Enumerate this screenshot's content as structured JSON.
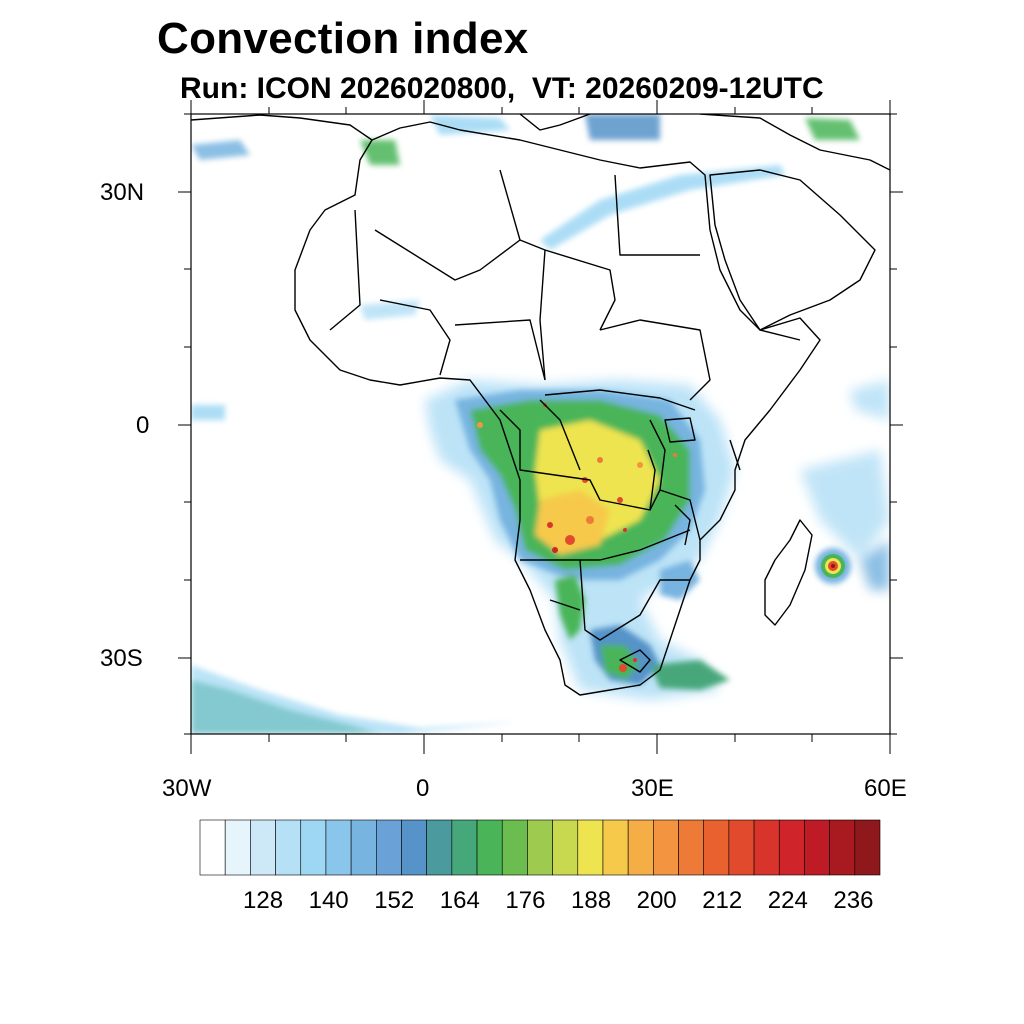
{
  "title": "Convection index",
  "subtitle": "Run: ICON 2026020800,  VT: 20260209-12UTC",
  "map": {
    "region": "Africa",
    "lat_range": [
      -40,
      40
    ],
    "lon_range": [
      -30,
      60
    ],
    "lat_labels": [
      {
        "lat": 30,
        "text": "30N"
      },
      {
        "lat": 0,
        "text": "0"
      },
      {
        "lat": -30,
        "text": "30S"
      }
    ],
    "lon_labels": [
      {
        "lon": -30,
        "text": "30W"
      },
      {
        "lon": 0,
        "text": "0"
      },
      {
        "lon": 30,
        "text": "30E"
      },
      {
        "lon": 60,
        "text": "60E"
      }
    ]
  },
  "colorbar": {
    "labels": [
      "128",
      "140",
      "152",
      "164",
      "176",
      "188",
      "200",
      "212",
      "224",
      "236"
    ],
    "colors": [
      "#ffffff",
      "#e6f4fb",
      "#cde9f8",
      "#b5e0f6",
      "#9dd7f4",
      "#8ac5ec",
      "#77b4e0",
      "#6aa2d8",
      "#5593c8",
      "#4a9a9e",
      "#46a77a",
      "#49b558",
      "#6abd4e",
      "#9ecb4f",
      "#c9d94f",
      "#eee44f",
      "#f6c94b",
      "#f5ad45",
      "#f39440",
      "#ee7a37",
      "#e8612f",
      "#e14a2c",
      "#d9342b",
      "#cf242a",
      "#bf1b27",
      "#a81a20",
      "#8e181b"
    ]
  }
}
